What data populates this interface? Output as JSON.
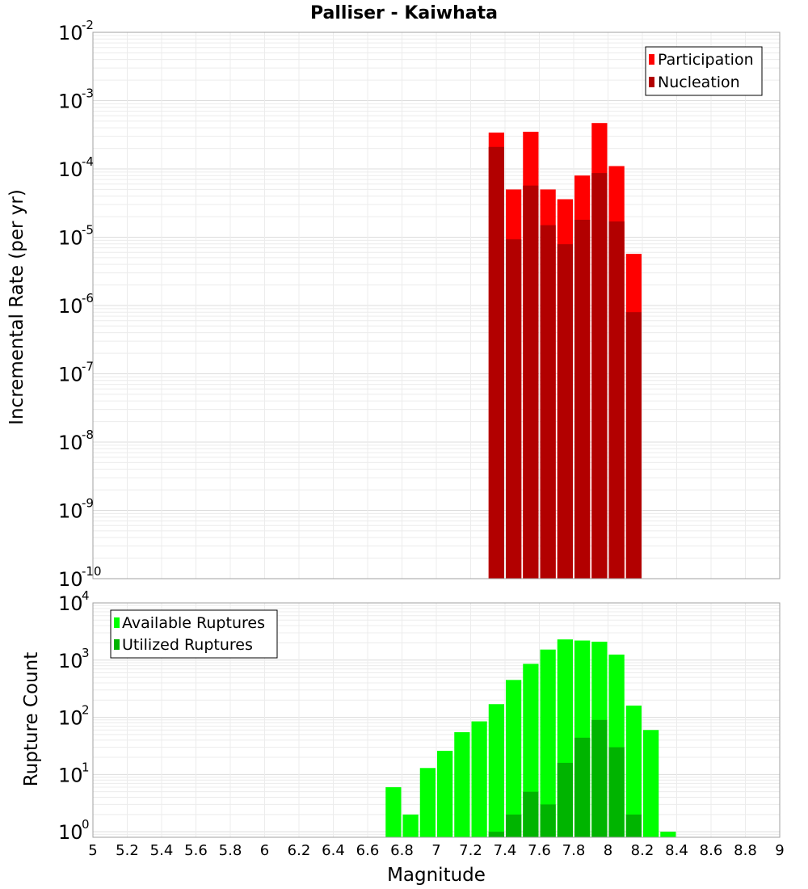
{
  "chart_data": [
    {
      "type": "bar",
      "title": "Palliser - Kaiwhata",
      "xlabel": "",
      "ylabel": "Incremental Rate (per yr)",
      "yscale": "log",
      "ylim": [
        1e-10,
        0.01
      ],
      "xlim": [
        5,
        9
      ],
      "grid": true,
      "legend_position": "top-right",
      "bar_width": 0.1,
      "series": [
        {
          "name": "Participation",
          "color": "#ff0000",
          "x": [
            7.35,
            7.45,
            7.55,
            7.65,
            7.75,
            7.85,
            7.95,
            8.05,
            8.15
          ],
          "values": [
            0.00034,
            5e-05,
            0.00035,
            5e-05,
            3.6e-05,
            8e-05,
            0.00047,
            0.00011,
            5.7e-06
          ]
        },
        {
          "name": "Nucleation",
          "color": "#b20000",
          "x": [
            7.35,
            7.45,
            7.55,
            7.65,
            7.75,
            7.85,
            7.95,
            8.05,
            8.15
          ],
          "values": [
            0.00021,
            9.3e-06,
            5.7e-05,
            1.5e-05,
            7.9e-06,
            1.8e-05,
            8.7e-05,
            1.7e-05,
            8e-07
          ]
        }
      ]
    },
    {
      "type": "bar",
      "title": "",
      "xlabel": "Magnitude",
      "ylabel": "Rupture Count",
      "yscale": "log",
      "ylim": [
        0.8,
        10000
      ],
      "xlim": [
        5,
        9
      ],
      "grid": true,
      "legend_position": "top-left",
      "bar_width": 0.1,
      "x_ticks": [
        "5",
        "5.2",
        "5.4",
        "5.6",
        "5.8",
        "6",
        "6.2",
        "6.4",
        "6.6",
        "6.8",
        "7",
        "7.2",
        "7.4",
        "7.6",
        "7.8",
        "8",
        "8.2",
        "8.4",
        "8.6",
        "8.8",
        "9"
      ],
      "series": [
        {
          "name": "Available Ruptures",
          "color": "#00ff00",
          "x": [
            6.75,
            6.85,
            6.95,
            7.05,
            7.15,
            7.25,
            7.35,
            7.45,
            7.55,
            7.65,
            7.75,
            7.85,
            7.95,
            8.05,
            8.15,
            8.25,
            8.35
          ],
          "values": [
            6,
            2,
            13,
            26,
            55,
            85,
            170,
            450,
            860,
            1530,
            2300,
            2200,
            2100,
            1250,
            160,
            60,
            1
          ]
        },
        {
          "name": "Utilized Ruptures",
          "color": "#00b400",
          "x": [
            7.35,
            7.45,
            7.55,
            7.65,
            7.75,
            7.85,
            7.95,
            8.05,
            8.15
          ],
          "values": [
            1,
            2,
            5,
            3,
            16,
            44,
            90,
            30,
            2
          ]
        }
      ]
    }
  ]
}
